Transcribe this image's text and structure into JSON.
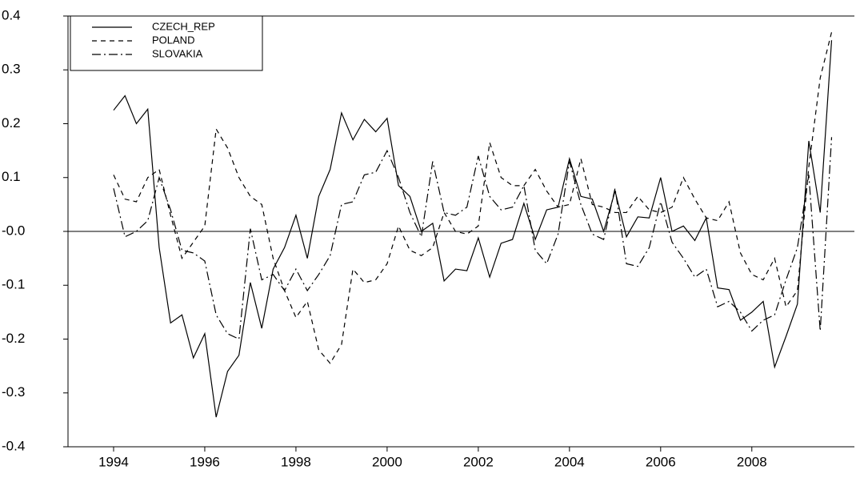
{
  "chart_data": {
    "type": "line",
    "x": [
      1994,
      1994.25,
      1994.5,
      1994.75,
      1995,
      1995.25,
      1995.5,
      1995.75,
      1996,
      1996.25,
      1996.5,
      1996.75,
      1997,
      1997.25,
      1997.5,
      1997.75,
      1998,
      1998.25,
      1998.5,
      1998.75,
      1999,
      1999.25,
      1999.5,
      1999.75,
      2000,
      2000.25,
      2000.5,
      2000.75,
      2001,
      2001.25,
      2001.5,
      2001.75,
      2002,
      2002.25,
      2002.5,
      2002.75,
      2003,
      2003.25,
      2003.5,
      2003.75,
      2004,
      2004.25,
      2004.5,
      2004.75,
      2005,
      2005.25,
      2005.5,
      2005.75,
      2006,
      2006.25,
      2006.5,
      2006.75,
      2007,
      2007.25,
      2007.5,
      2007.75,
      2008,
      2008.25,
      2008.5,
      2008.75,
      2009,
      2009.25,
      2009.5,
      2009.75
    ],
    "series": [
      {
        "name": "CZECH_REP",
        "color": "#000000",
        "dash": "none",
        "values": [
          0.225,
          0.252,
          0.2,
          0.227,
          -0.03,
          -0.17,
          -0.155,
          -0.235,
          -0.19,
          -0.345,
          -0.26,
          -0.23,
          -0.095,
          -0.18,
          -0.07,
          -0.03,
          0.03,
          -0.05,
          0.065,
          0.115,
          0.22,
          0.17,
          0.208,
          0.185,
          0.21,
          0.085,
          0.065,
          0.0,
          0.015,
          -0.092,
          -0.07,
          -0.073,
          -0.012,
          -0.085,
          -0.022,
          -0.015,
          0.052,
          -0.015,
          0.04,
          0.045,
          0.135,
          0.065,
          0.06,
          0.0,
          0.075,
          -0.01,
          0.027,
          0.025,
          0.1,
          0.0,
          0.01,
          -0.017,
          0.025,
          -0.105,
          -0.108,
          -0.165,
          -0.15,
          -0.13,
          -0.252,
          -0.195,
          -0.135,
          0.168,
          0.035,
          0.355
        ]
      },
      {
        "name": "POLAND",
        "color": "#000000",
        "dash": "6,5",
        "values": [
          0.105,
          0.06,
          0.055,
          0.1,
          0.115,
          0.03,
          -0.05,
          -0.02,
          0.01,
          0.19,
          0.155,
          0.1,
          0.065,
          0.05,
          -0.05,
          -0.11,
          -0.16,
          -0.13,
          -0.22,
          -0.245,
          -0.21,
          -0.07,
          -0.095,
          -0.09,
          -0.06,
          0.01,
          -0.035,
          -0.045,
          -0.03,
          0.035,
          0.0,
          -0.005,
          0.01,
          0.165,
          0.1,
          0.085,
          0.085,
          0.115,
          0.075,
          0.045,
          0.05,
          0.135,
          0.05,
          0.045,
          0.035,
          0.035,
          0.065,
          0.04,
          0.035,
          0.045,
          0.1,
          0.06,
          0.025,
          0.02,
          0.055,
          -0.04,
          -0.08,
          -0.09,
          -0.05,
          -0.14,
          -0.11,
          0.12,
          0.285,
          0.37
        ]
      },
      {
        "name": "SLOVAKIA",
        "color": "#000000",
        "dash": "11,4,2,4",
        "values": [
          0.08,
          -0.01,
          0.0,
          0.02,
          0.1,
          0.04,
          -0.035,
          -0.04,
          -0.055,
          -0.155,
          -0.19,
          -0.2,
          0.005,
          -0.09,
          -0.08,
          -0.11,
          -0.07,
          -0.11,
          -0.08,
          -0.045,
          0.05,
          0.055,
          0.105,
          0.11,
          0.15,
          0.1,
          0.035,
          -0.01,
          0.13,
          0.035,
          0.03,
          0.045,
          0.14,
          0.065,
          0.04,
          0.045,
          0.085,
          -0.035,
          -0.06,
          -0.005,
          0.13,
          0.05,
          -0.005,
          -0.015,
          0.08,
          -0.06,
          -0.065,
          -0.03,
          0.055,
          -0.02,
          -0.05,
          -0.085,
          -0.07,
          -0.14,
          -0.13,
          -0.15,
          -0.185,
          -0.165,
          -0.155,
          -0.09,
          -0.03,
          0.105,
          -0.185,
          0.175
        ]
      }
    ],
    "xlim": [
      1993,
      2010.25
    ],
    "xticks": [
      1994,
      1996,
      1998,
      2000,
      2002,
      2004,
      2006,
      2008
    ],
    "ylim": [
      -0.4,
      0.4
    ],
    "yticks": [
      -0.4,
      -0.3,
      -0.2,
      -0.1,
      {
        "value": 0,
        "label": "-0.0"
      },
      0.1,
      0.2,
      0.3,
      0.4
    ],
    "zero_line": true,
    "legend": "top-left"
  }
}
